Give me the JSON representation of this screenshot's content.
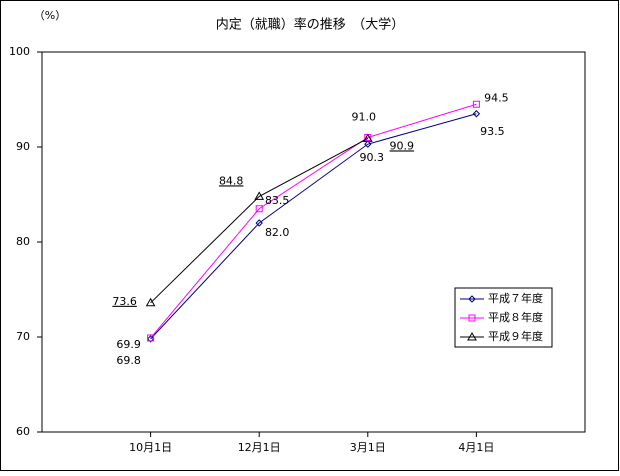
{
  "chart_data": {
    "type": "line",
    "title": "内定（就職）率の推移　（大学）",
    "y_unit": "（%）",
    "categories": [
      "10月1日",
      "12月1日",
      "3月1日",
      "4月1日"
    ],
    "series": [
      {
        "name": "平成７年度",
        "color": "#000080",
        "marker": "diamond",
        "values": [
          69.8,
          82.0,
          90.3,
          93.5
        ],
        "value_labels": [
          "69.8",
          "82.0",
          "90.3",
          "93.5"
        ]
      },
      {
        "name": "平成８年度",
        "color": "#ff00ff",
        "marker": "square",
        "values": [
          69.9,
          83.5,
          91.0,
          94.5
        ],
        "value_labels": [
          "69.9",
          "83.5",
          "91.0",
          "94.5"
        ]
      },
      {
        "name": "平成９年度",
        "color": "#000000",
        "marker": "triangle",
        "values": [
          73.6,
          84.8,
          90.9,
          null
        ],
        "value_labels": [
          "73.6",
          "84.8",
          "90.9",
          null
        ]
      }
    ],
    "ylim": [
      60,
      100
    ],
    "yticks": [
      60,
      70,
      80,
      90,
      100
    ]
  }
}
